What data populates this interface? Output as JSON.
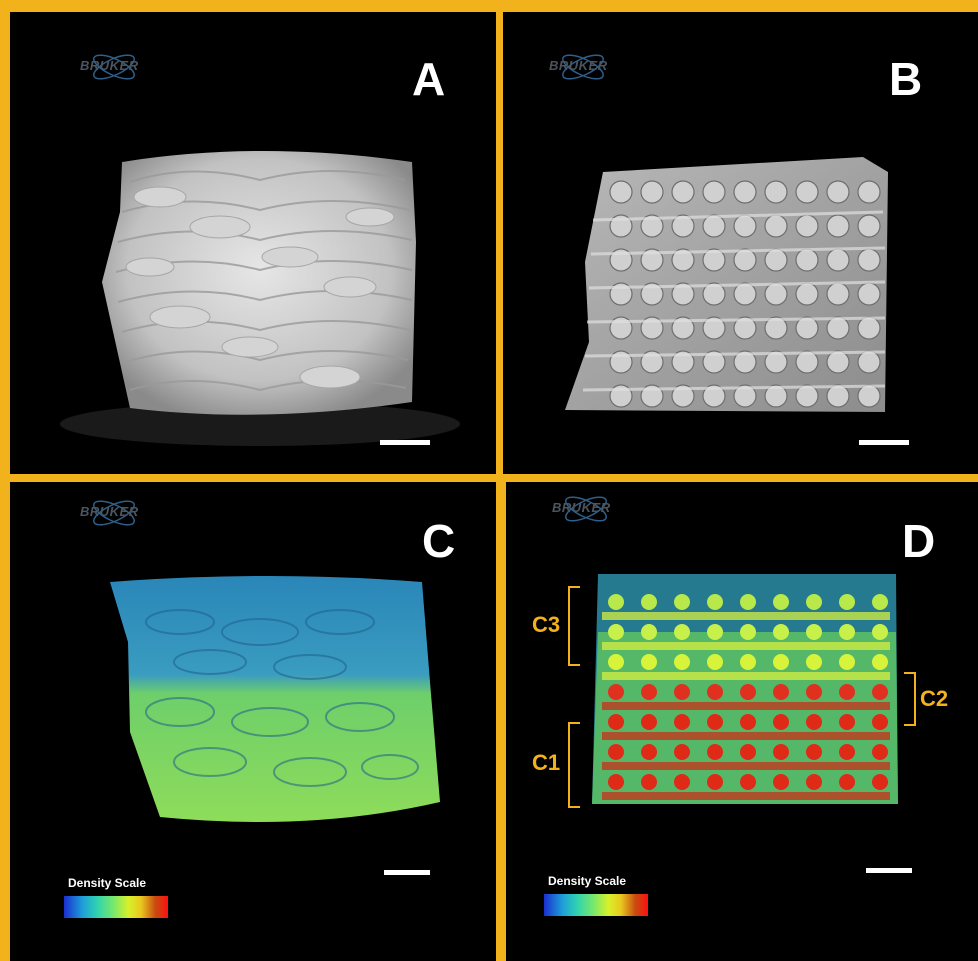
{
  "panels": {
    "a": {
      "label": "A",
      "logo": "BRUKER"
    },
    "b": {
      "label": "B",
      "logo": "BRUKER"
    },
    "c": {
      "label": "C",
      "logo": "BRUKER",
      "density_title": "Density Scale"
    },
    "d": {
      "label": "D",
      "logo": "BRUKER",
      "density_title": "Density Scale",
      "regions": {
        "c1": "C1",
        "c2": "C2",
        "c3": "C3"
      }
    }
  },
  "colors": {
    "border": "#f2b21c",
    "background": "#000000",
    "label": "#ffffff",
    "region_label": "#f2b21c"
  }
}
